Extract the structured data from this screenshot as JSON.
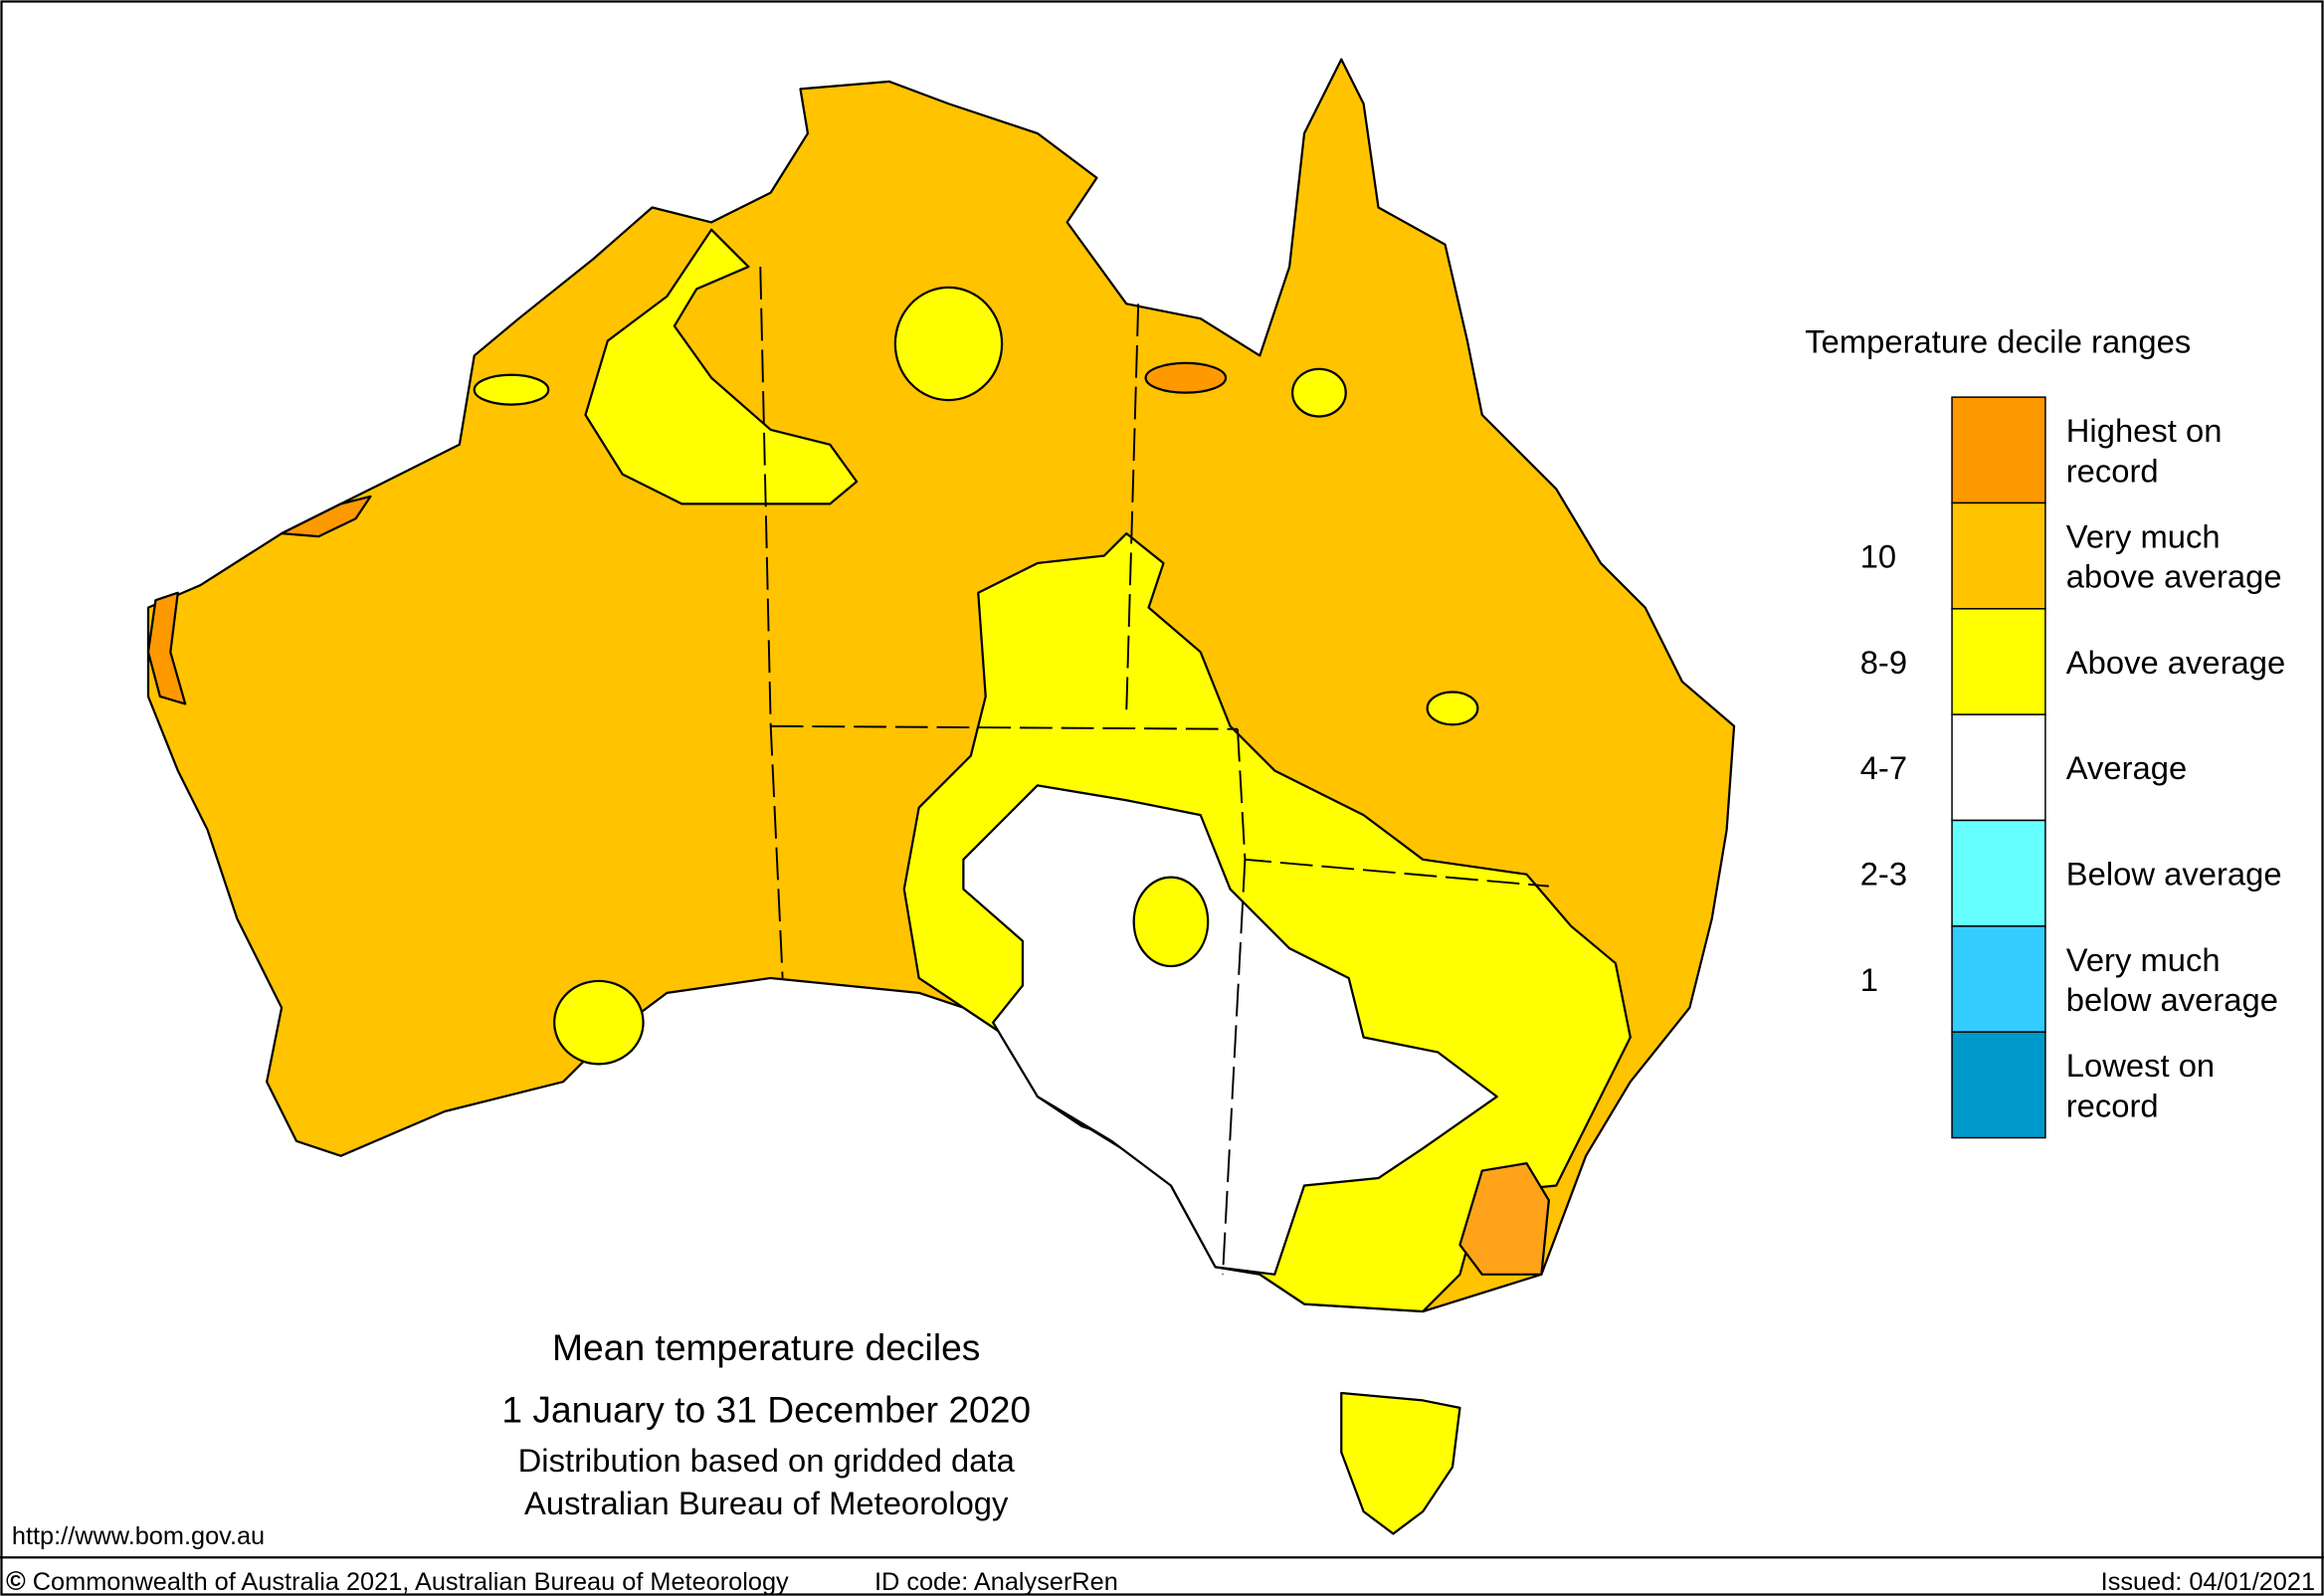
{
  "map": {
    "title": "Mean temperature  deciles",
    "period": "1 January to 31 December 2020",
    "note1": "Distribution based on gridded data",
    "note2": "Australian Bureau of Meteorology",
    "url": "http://www.bom.gov.au"
  },
  "legend": {
    "title": "Temperature decile ranges",
    "items": [
      {
        "label": [
          "Highest on",
          "record"
        ],
        "color": "#ff9900"
      },
      {
        "decile": "10",
        "label": [
          "Very much",
          "above average"
        ],
        "color": "#ffc300"
      },
      {
        "decile": "8-9",
        "label": [
          "Above average"
        ],
        "color": "#ffff00"
      },
      {
        "decile": "4-7",
        "label": [
          "Average"
        ],
        "color": "#ffffff"
      },
      {
        "decile": "2-3",
        "label": [
          "Below average"
        ],
        "color": "#66ffff"
      },
      {
        "decile": "1",
        "label": [
          "Very much",
          "below average"
        ],
        "color": "#33ccff"
      },
      {
        "label": [
          "Lowest on",
          "record"
        ],
        "color": "#0099cc"
      }
    ]
  },
  "footer": {
    "symbol": "©",
    "copyright": "Commonwealth of Australia 2021, Australian Bureau of Meteorology",
    "id": "ID code: AnalyserRen",
    "issued": "Issued: 04/01/2021"
  }
}
